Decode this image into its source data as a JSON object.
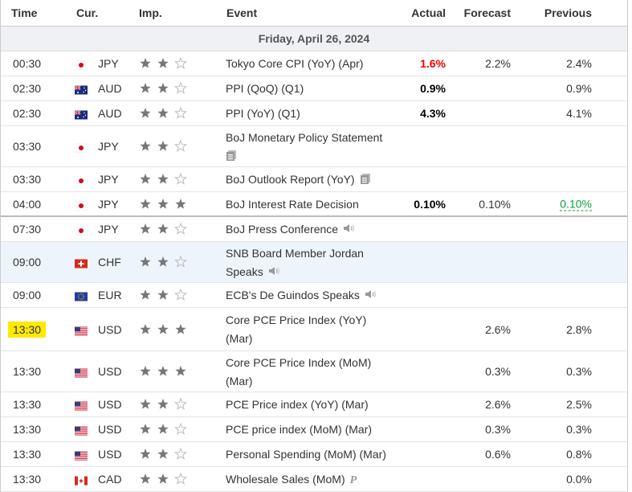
{
  "header": {
    "time": "Time",
    "currency": "Cur.",
    "importance": "Imp.",
    "event": "Event",
    "actual": "Actual",
    "forecast": "Forecast",
    "previous": "Previous"
  },
  "day_label": "Friday, April 26, 2024",
  "rows": [
    {
      "time": "00:30",
      "flag": "JP",
      "currency": "JPY",
      "stars": 2,
      "event": [
        "Tokyo Core CPI (YoY) (Apr)"
      ],
      "icon": "",
      "actual": "1.6%",
      "actual_color": "red",
      "forecast": "2.2%",
      "previous": "2.4%"
    },
    {
      "time": "02:30",
      "flag": "AU",
      "currency": "AUD",
      "stars": 2,
      "event": [
        "PPI (QoQ) (Q1)"
      ],
      "icon": "",
      "actual": "0.9%",
      "forecast": "",
      "previous": "0.9%"
    },
    {
      "time": "02:30",
      "flag": "AU",
      "currency": "AUD",
      "stars": 2,
      "event": [
        "PPI (YoY) (Q1)"
      ],
      "icon": "",
      "actual": "4.3%",
      "forecast": "",
      "previous": "4.1%"
    },
    {
      "time": "03:30",
      "flag": "JP",
      "currency": "JPY",
      "stars": 2,
      "event": [
        "BoJ Monetary Policy Statement"
      ],
      "icon": "document-icon",
      "icon_below": true,
      "actual": "",
      "forecast": "",
      "previous": ""
    },
    {
      "time": "03:30",
      "flag": "JP",
      "currency": "JPY",
      "stars": 2,
      "event": [
        "BoJ Outlook Report (YoY)"
      ],
      "icon": "document-icon",
      "actual": "",
      "forecast": "",
      "previous": ""
    },
    {
      "time": "04:00",
      "flag": "JP",
      "currency": "JPY",
      "stars": 3,
      "event": [
        "BoJ Interest Rate Decision"
      ],
      "icon": "",
      "actual": "0.10%",
      "forecast": "0.10%",
      "previous": "0.10%",
      "previous_color": "green"
    },
    {
      "time": "07:30",
      "flag": "JP",
      "currency": "JPY",
      "stars": 2,
      "event": [
        "BoJ Press Conference"
      ],
      "icon": "speaker-icon",
      "actual": "",
      "forecast": "",
      "previous": ""
    },
    {
      "time": "09:00",
      "flag": "CH",
      "currency": "CHF",
      "stars": 2,
      "event": [
        "SNB Board Member Jordan",
        "Speaks"
      ],
      "icon": "speaker-icon",
      "actual": "",
      "forecast": "",
      "previous": "",
      "highlight": true
    },
    {
      "time": "09:00",
      "flag": "EU",
      "currency": "EUR",
      "stars": 2,
      "event": [
        "ECB's De Guindos Speaks"
      ],
      "icon": "speaker-icon",
      "actual": "",
      "forecast": "",
      "previous": ""
    },
    {
      "time": "13:30",
      "flag": "US",
      "currency": "USD",
      "stars": 3,
      "event": [
        "Core PCE Price Index (YoY)",
        "(Mar)"
      ],
      "icon": "",
      "actual": "",
      "forecast": "2.6%",
      "previous": "2.8%",
      "time_marked": true
    },
    {
      "time": "13:30",
      "flag": "US",
      "currency": "USD",
      "stars": 3,
      "event": [
        "Core PCE Price Index (MoM)",
        "(Mar)"
      ],
      "icon": "",
      "actual": "",
      "forecast": "0.3%",
      "previous": "0.3%"
    },
    {
      "time": "13:30",
      "flag": "US",
      "currency": "USD",
      "stars": 2,
      "event": [
        "PCE Price index (YoY) (Mar)"
      ],
      "icon": "",
      "actual": "",
      "forecast": "2.6%",
      "previous": "2.5%"
    },
    {
      "time": "13:30",
      "flag": "US",
      "currency": "USD",
      "stars": 2,
      "event": [
        "PCE price index (MoM) (Mar)"
      ],
      "icon": "",
      "actual": "",
      "forecast": "0.3%",
      "previous": "0.3%"
    },
    {
      "time": "13:30",
      "flag": "US",
      "currency": "USD",
      "stars": 2,
      "event": [
        "Personal Spending (MoM) (Mar)"
      ],
      "icon": "",
      "actual": "",
      "forecast": "0.6%",
      "previous": "0.8%"
    },
    {
      "time": "13:30",
      "flag": "CA",
      "currency": "CAD",
      "stars": 2,
      "event": [
        "Wholesale Sales (MoM)"
      ],
      "icon": "preliminary-icon",
      "icon_text": "P",
      "actual": "",
      "forecast": "",
      "previous": "0.0%"
    }
  ],
  "colors": {
    "actual_red": "#e00000",
    "previous_green": "#0a9e3a",
    "marker_yellow": "#ffe900",
    "row_highlight": "#eef4fb",
    "star_gray": "#777777",
    "star_outline": "#bbbbbb"
  }
}
